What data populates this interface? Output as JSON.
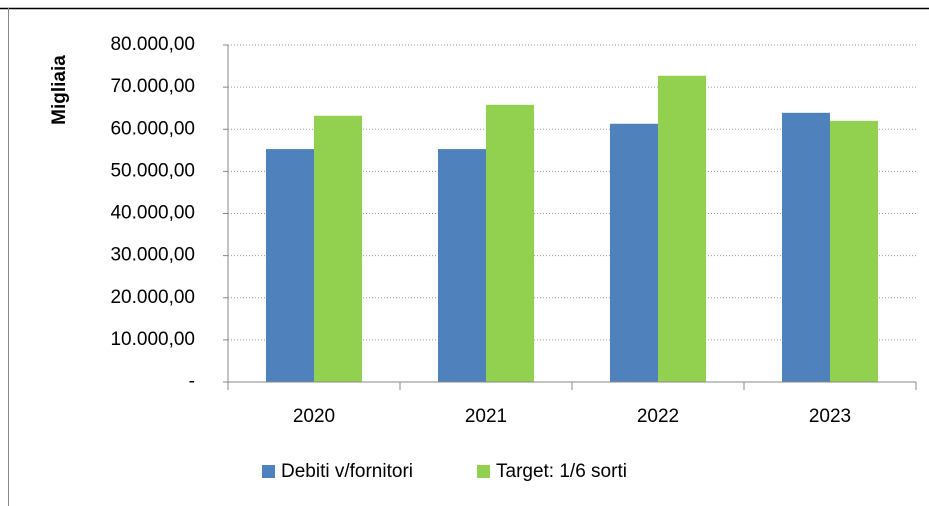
{
  "chart_data": {
    "type": "bar",
    "y_label": "Migliaia",
    "categories": [
      "2020",
      "2021",
      "2022",
      "2023"
    ],
    "series": [
      {
        "name": "Debiti v/fornitori",
        "color": "#4f81bd",
        "values": [
          55300,
          55300,
          61300,
          63900
        ]
      },
      {
        "name": "Target: 1/6 sorti",
        "color": "#92d050",
        "values": [
          63200,
          65800,
          72700,
          62000
        ]
      }
    ],
    "ylim": [
      0,
      80000
    ],
    "yticks": [
      {
        "value": 0,
        "label": "-"
      },
      {
        "value": 10000,
        "label": "10.000,00"
      },
      {
        "value": 20000,
        "label": "20.000,00"
      },
      {
        "value": 30000,
        "label": "30.000,00"
      },
      {
        "value": 40000,
        "label": "40.000,00"
      },
      {
        "value": 50000,
        "label": "50.000,00"
      },
      {
        "value": 60000,
        "label": "60.000,00"
      },
      {
        "value": 70000,
        "label": "70.000,00"
      },
      {
        "value": 80000,
        "label": "80.000,00"
      }
    ],
    "grid": true,
    "legend": "bottom"
  }
}
